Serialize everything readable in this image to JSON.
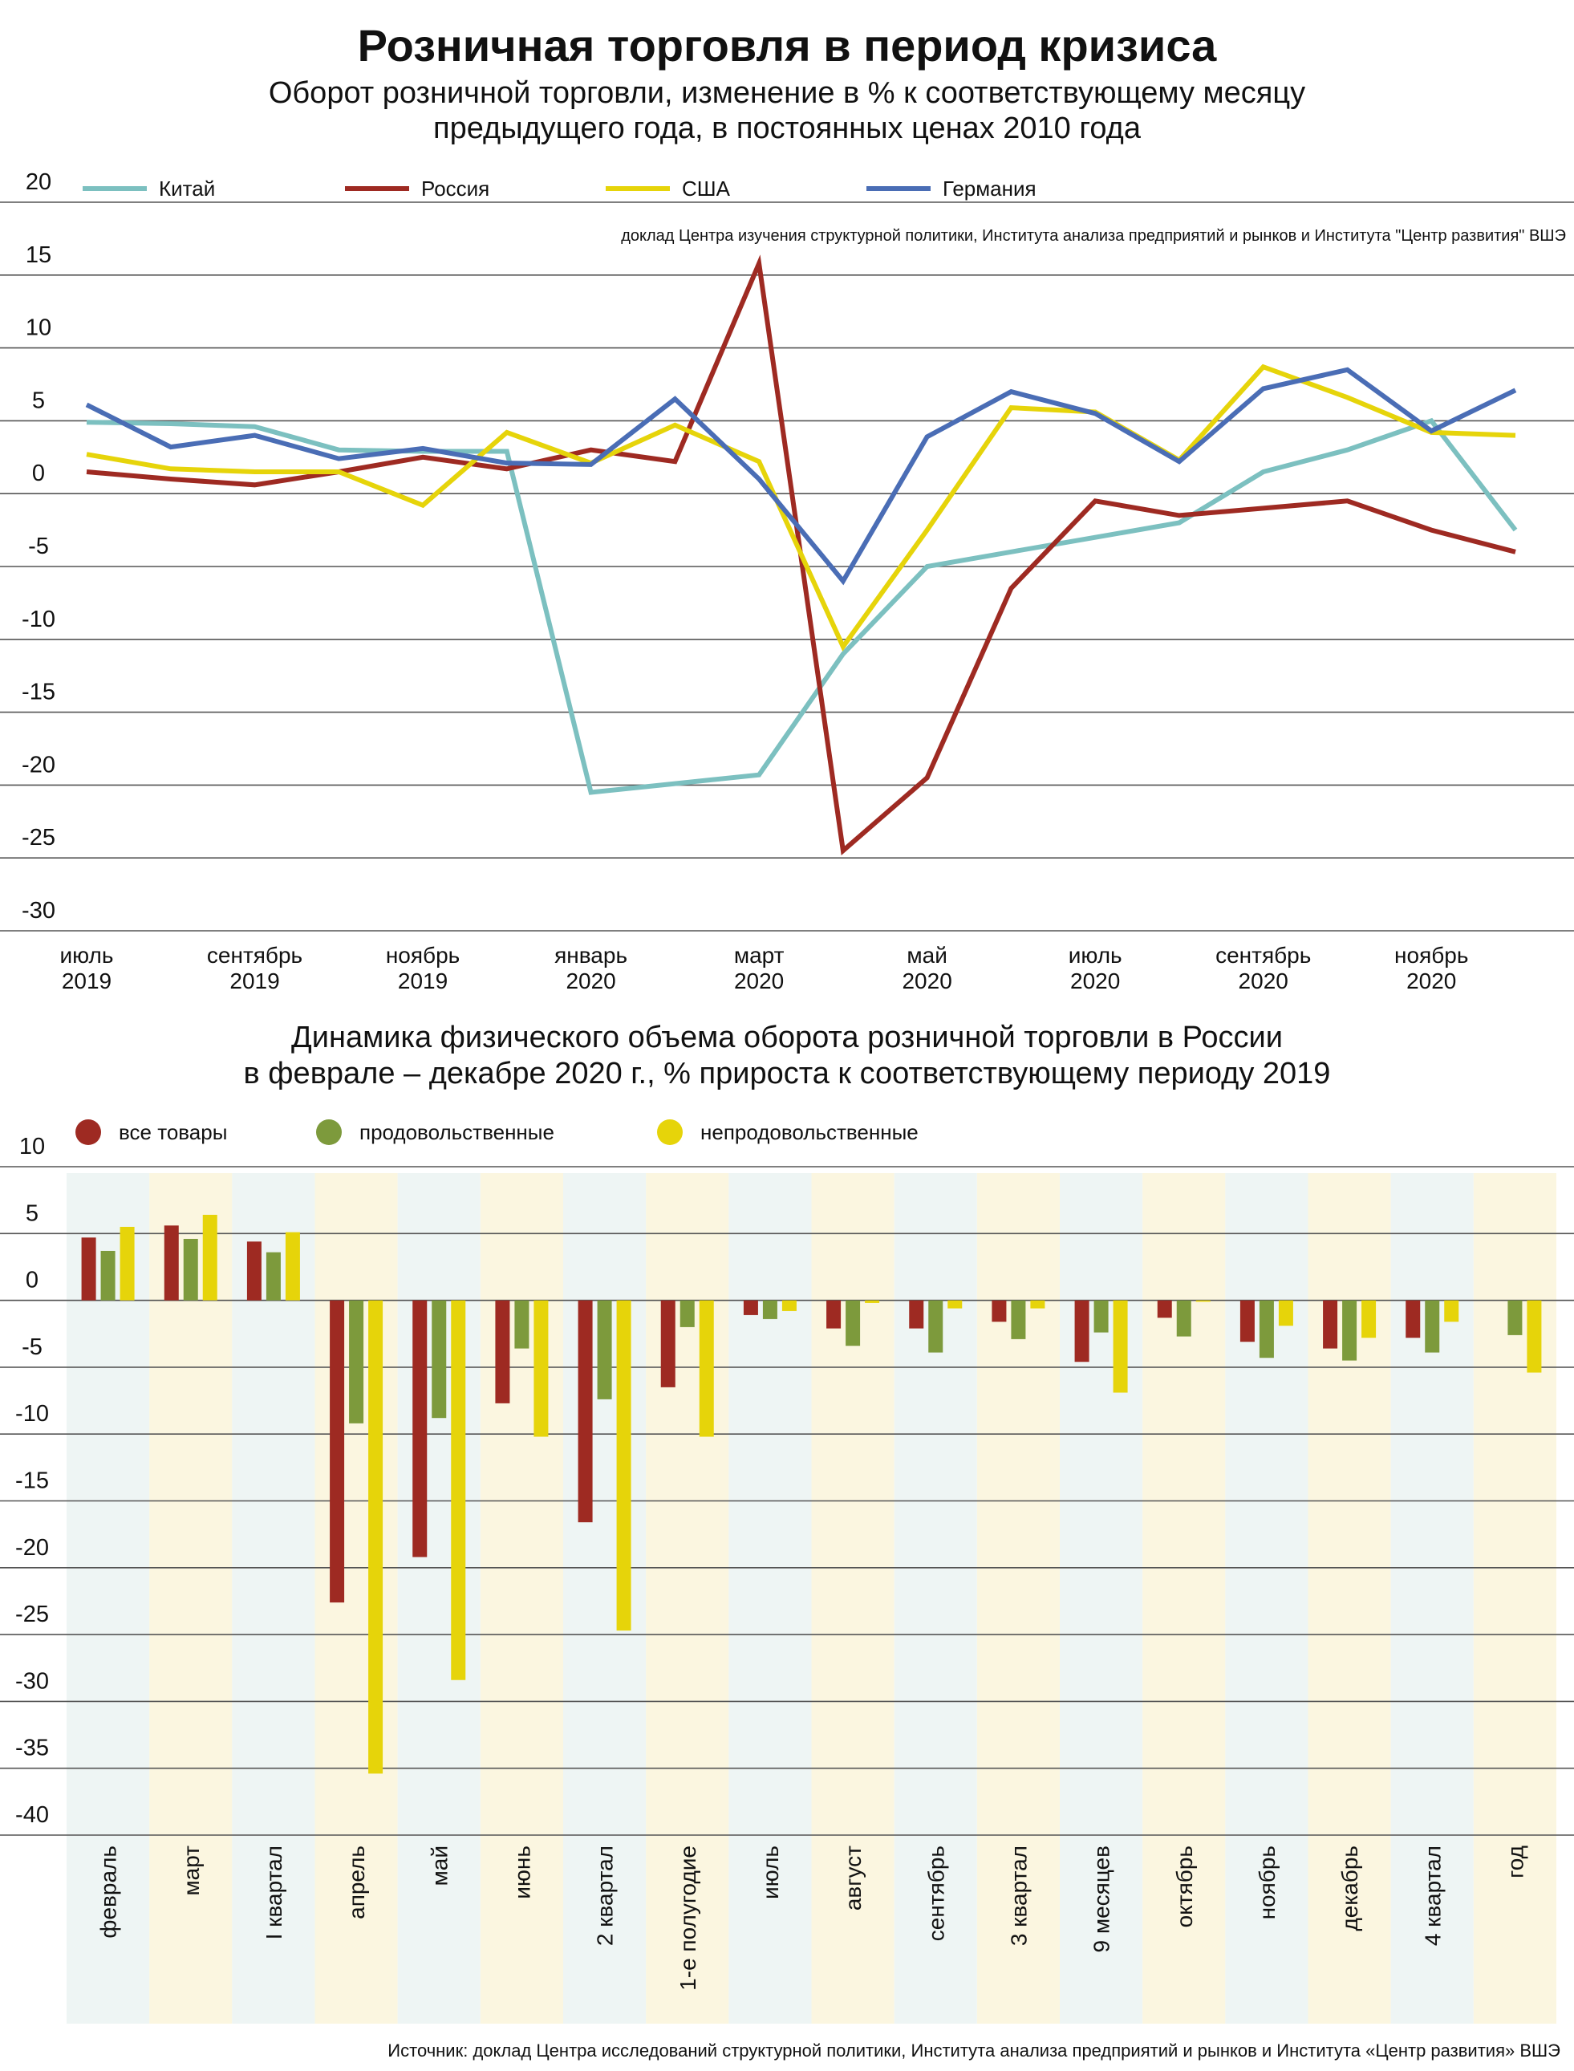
{
  "title": "Розничная торговля в период кризиса",
  "chart_data": [
    {
      "type": "line",
      "title": "Оборот розничной торговли, изменение в % к соответствующему месяцу предыдущего года, в постоянных ценах 2010 года",
      "title_lines": [
        "Оборот розничной торговли, изменение в % к соответствующему месяцу",
        "предыдущего года, в постоянных ценах 2010 года"
      ],
      "note": "доклад Центра изучения структурной политики, Института анализа предприятий и рынков и Института \"Центр развития\" ВШЭ",
      "ylim": [
        -30,
        20
      ],
      "yticks": [
        20,
        15,
        10,
        5,
        0,
        -5,
        -10,
        -15,
        -20,
        -25,
        -30
      ],
      "x": [
        "2019-07",
        "2019-08",
        "2019-09",
        "2019-10",
        "2019-11",
        "2019-12",
        "2020-01",
        "2020-02",
        "2020-03",
        "2020-04",
        "2020-05",
        "2020-06",
        "2020-07",
        "2020-08",
        "2020-09",
        "2020-10",
        "2020-11",
        "2020-12"
      ],
      "x_tick_labels": [
        {
          "month": "июль",
          "year": "2019"
        },
        {
          "month": "сентябрь",
          "year": "2019"
        },
        {
          "month": "ноябрь",
          "year": "2019"
        },
        {
          "month": "январь",
          "year": "2020"
        },
        {
          "month": "март",
          "year": "2020"
        },
        {
          "month": "май",
          "year": "2020"
        },
        {
          "month": "июль",
          "year": "2020"
        },
        {
          "month": "сентябрь",
          "year": "2020"
        },
        {
          "month": "ноябрь",
          "year": "2020"
        }
      ],
      "series": [
        {
          "name": "Китай",
          "color": "#7cc0c0",
          "values": [
            4.9,
            4.8,
            4.6,
            3,
            2.9,
            2.9,
            -20.5,
            -19.9,
            -19.3,
            -11,
            -5,
            -4,
            -3,
            -2,
            1.5,
            3,
            5,
            -2.5
          ]
        },
        {
          "name": "Россия",
          "color": "#9e2a22",
          "values": [
            1.5,
            1,
            0.6,
            1.5,
            2.5,
            1.7,
            3,
            2.2,
            15.8,
            -24.5,
            -19.5,
            -6.5,
            -0.5,
            -1.5,
            -1,
            -0.5,
            -2.5,
            -4
          ]
        },
        {
          "name": "США",
          "color": "#e6d40a",
          "values": [
            2.7,
            1.7,
            1.5,
            1.5,
            -0.8,
            4.2,
            2.1,
            4.7,
            2.2,
            -10.5,
            -2.5,
            5.9,
            5.6,
            2.3,
            8.7,
            6.6,
            4.2,
            4
          ]
        },
        {
          "name": "Германия",
          "color": "#4a6db5",
          "values": [
            6.1,
            3.2,
            4,
            2.4,
            3.1,
            2.1,
            2,
            6.5,
            1,
            -6,
            3.9,
            7,
            5.5,
            2.2,
            7.2,
            8.5,
            4.3,
            7.1
          ]
        }
      ]
    },
    {
      "type": "bar",
      "title": "Динамика физического объема оборота розничной торговли в России в феврале – декабре 2020 г., % прироста к соответствующему периоду 2019",
      "title_lines": [
        "Динамика физического объема оборота розничной торговли в России",
        "в феврале – декабре 2020 г., % прироста к соответствующему периоду 2019"
      ],
      "ylim": [
        -40,
        10
      ],
      "yticks": [
        10,
        5,
        0,
        -5,
        -10,
        -15,
        -20,
        -25,
        -30,
        -35,
        -40
      ],
      "categories": [
        "февраль",
        "март",
        "I квартал",
        "апрель",
        "май",
        "июнь",
        "2 квартал",
        "1-е полугодие",
        "июль",
        "август",
        "сентябрь",
        "3 квартал",
        "9 месяцев",
        "октябрь",
        "ноябрь",
        "декабрь",
        "4 квартал",
        "год"
      ],
      "series": [
        {
          "name": "все товары",
          "color": "#9e2a22",
          "values": [
            4.7,
            5.6,
            4.4,
            -22.6,
            -19.2,
            -7.7,
            -16.6,
            -6.5,
            -1.1,
            -2.1,
            -2.1,
            -1.6,
            -4.6,
            -1.3,
            -3.1,
            -3.6,
            -2.8,
            null
          ]
        },
        {
          "name": "продовольственные",
          "color": "#7d9a3c",
          "values": [
            3.7,
            4.6,
            3.6,
            -9.2,
            -8.8,
            -3.6,
            -7.4,
            -2,
            -1.4,
            -3.4,
            -3.9,
            -2.9,
            -2.4,
            -2.7,
            -4.3,
            -4.5,
            -3.9,
            -2.6
          ]
        },
        {
          "name": "непродовольственные",
          "color": "#e6d40a",
          "values": [
            5.5,
            6.4,
            5.1,
            -35.4,
            -28.4,
            -10.2,
            -24.7,
            -10.2,
            -0.8,
            -0.2,
            -0.6,
            -0.6,
            -6.9,
            -0.1,
            -1.9,
            -2.8,
            -1.6,
            -5.4
          ]
        }
      ],
      "column_bg": [
        "#eef5f4",
        "#fbf6e0"
      ]
    }
  ],
  "source": "Источник: доклад Центра исследований структурной политики, Института анализа предприятий и рынков и Института «Центр развития» ВШЭ"
}
